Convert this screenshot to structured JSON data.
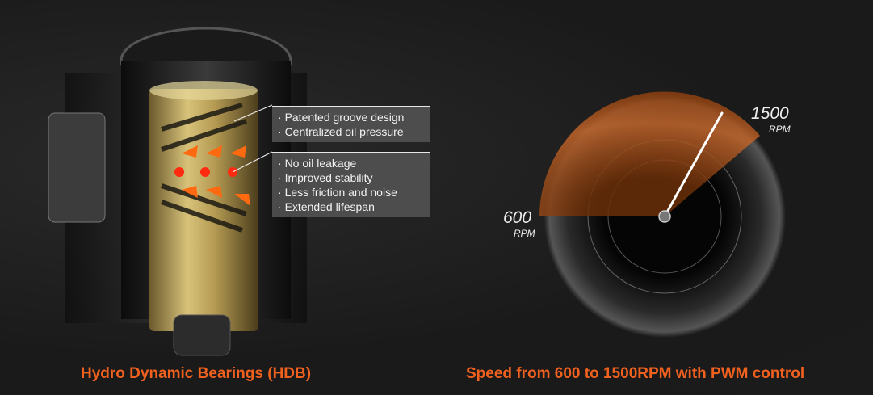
{
  "left_panel": {
    "callout_top": [
      "Patented groove design",
      "Centralized oil pressure"
    ],
    "callout_bottom": [
      "No oil leakage",
      "Improved stability",
      "Less friction and noise",
      "Extended lifespan"
    ],
    "caption": "Hydro Dynamic Bearings (HDB)"
  },
  "right_panel": {
    "gauge": {
      "min_value": "600",
      "min_unit": "RPM",
      "max_value": "1500",
      "max_unit": "RPM",
      "fill_color": "#b8561a"
    },
    "caption": "Speed from 600 to 1500RPM with PWM control"
  },
  "colors": {
    "accent": "#f0601e",
    "background": "#1d1d1d"
  }
}
